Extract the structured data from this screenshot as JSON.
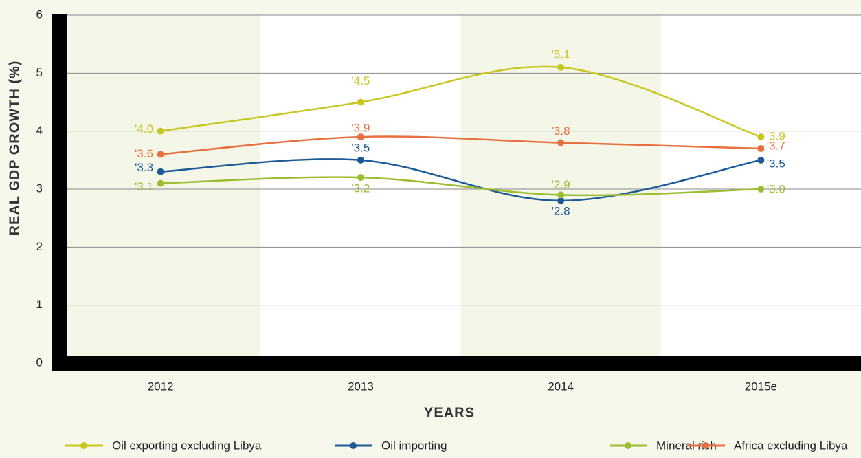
{
  "chart_data": {
    "type": "line",
    "x_label": "YEARS",
    "y_label": "REAL GDP GROWTH (%)",
    "categories": [
      "2012",
      "2013",
      "2014",
      "2015e"
    ],
    "ylim": [
      0,
      6
    ],
    "yticks": [
      0,
      1,
      2,
      3,
      4,
      5,
      6
    ],
    "grid": true,
    "series": [
      {
        "name": "Oil exporting excluding Libya",
        "color": "#c9c61f",
        "values": [
          4.0,
          4.5,
          5.1,
          3.9
        ],
        "value_labels": [
          "'4.0",
          "'4.5",
          "'5.1",
          "'3.9"
        ]
      },
      {
        "name": "Oil importing",
        "color": "#1c5b97",
        "values": [
          3.3,
          3.5,
          2.8,
          3.5
        ],
        "value_labels": [
          "'3.3",
          "'3.5",
          "'2.8",
          "'3.5"
        ]
      },
      {
        "name": "Mineral rich",
        "color": "#9dbd30",
        "values": [
          3.1,
          3.2,
          2.9,
          3.0
        ],
        "value_labels": [
          "'3.1",
          "'3.2",
          "'2.9",
          "'3.0"
        ]
      },
      {
        "name": "Africa excluding Libya",
        "color": "#e8703f",
        "values": [
          3.6,
          3.9,
          3.8,
          3.7
        ],
        "value_labels": [
          "'3.6",
          "'3.9",
          "'3.8",
          "'3.7"
        ]
      }
    ]
  }
}
